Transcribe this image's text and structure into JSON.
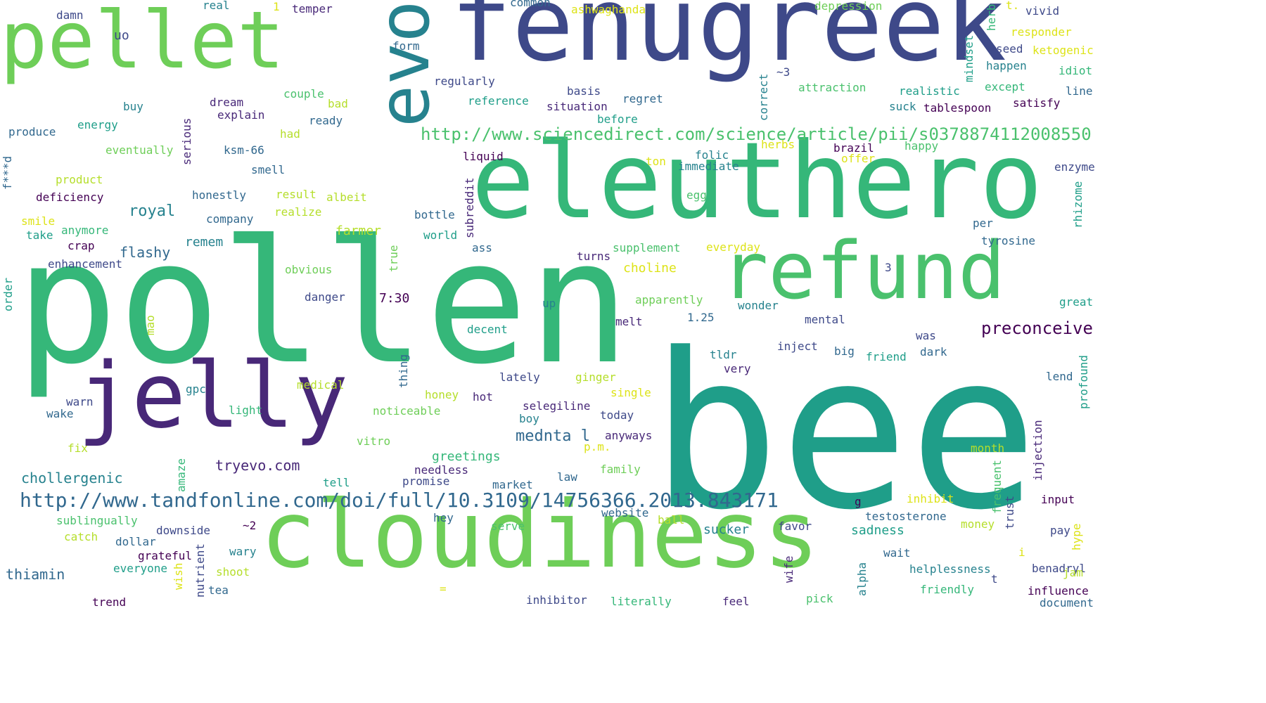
{
  "palette": {
    "background": "#ffffff",
    "colormap": "viridis",
    "c1": "#440154",
    "c2": "#482878",
    "c3": "#3e4989",
    "c4": "#31688e",
    "c5": "#26828e",
    "c6": "#1f9e89",
    "c7": "#35b779",
    "c8": "#6ece58",
    "c9": "#b5de2b",
    "c10": "#dde318"
  },
  "words": [
    {
      "text": "bee",
      "color": "#1f9e89",
      "orient": "h"
    },
    {
      "text": "pollen",
      "color": "#35b779",
      "orient": "h"
    },
    {
      "text": "fenugreek",
      "color": "#3e4989",
      "orient": "h"
    },
    {
      "text": "eleuthero",
      "color": "#35b779",
      "orient": "h"
    },
    {
      "text": "cloudiness",
      "color": "#6ece58",
      "orient": "h"
    },
    {
      "text": "pellet",
      "color": "#6ece58",
      "orient": "h"
    },
    {
      "text": "jelly",
      "color": "#482878",
      "orient": "h"
    },
    {
      "text": "refund",
      "color": "#4ac16d",
      "orient": "h"
    },
    {
      "text": "evo",
      "color": "#26828e",
      "orient": "v"
    },
    {
      "text": "http://www.sciencedirect.com/science/article/pii/s0378874112008550",
      "color": "#4ac16d",
      "orient": "h"
    },
    {
      "text": "http://www.tandfonline.com/doi/full/10.3109/14756366.2013.843171",
      "color": "#31688e",
      "orient": "h"
    },
    {
      "text": "preconceive",
      "color": "#440154",
      "orient": "h"
    },
    {
      "text": "tryevo.com",
      "color": "#482878",
      "orient": "h"
    },
    {
      "text": "chollergenic",
      "color": "#26828e",
      "orient": "h"
    },
    {
      "text": "mednta l",
      "color": "#31688e",
      "orient": "h"
    },
    {
      "text": "royal",
      "color": "#26828e",
      "orient": "h"
    },
    {
      "text": "flashy",
      "color": "#31688e",
      "orient": "h"
    },
    {
      "text": "choline",
      "color": "#dde318",
      "orient": "h"
    },
    {
      "text": "farmer",
      "color": "#b5de2b",
      "orient": "h"
    },
    {
      "text": "remem",
      "color": "#26828e",
      "orient": "h"
    },
    {
      "text": "thiamin",
      "color": "#31688e",
      "orient": "h"
    },
    {
      "text": "sadness",
      "color": "#1f9e89",
      "orient": "h"
    },
    {
      "text": "sucker",
      "color": "#26828e",
      "orient": "h"
    },
    {
      "text": "greetings",
      "color": "#35b779",
      "orient": "h"
    },
    {
      "text": "damn",
      "color": "#3e4989",
      "orient": "h"
    },
    {
      "text": "real",
      "color": "#26828e",
      "orient": "h"
    },
    {
      "text": "1",
      "color": "#dde318",
      "orient": "h"
    },
    {
      "text": "temper",
      "color": "#482878",
      "orient": "h"
    },
    {
      "text": "common",
      "color": "#31688e",
      "orient": "h"
    },
    {
      "text": "ashwaghanda",
      "color": "#dde318",
      "orient": "h"
    },
    {
      "text": "depression",
      "color": "#6ece58",
      "orient": "h"
    },
    {
      "text": "herb",
      "color": "#35b779",
      "orient": "v"
    },
    {
      "text": "t.",
      "color": "#dde318",
      "orient": "h"
    },
    {
      "text": "vivid",
      "color": "#3e4989",
      "orient": "h"
    },
    {
      "text": "uo",
      "color": "#3e4989",
      "orient": "h"
    },
    {
      "text": "form",
      "color": "#31688e",
      "orient": "h"
    },
    {
      "text": "responder",
      "color": "#dde318",
      "orient": "h"
    },
    {
      "text": "seed",
      "color": "#3e4989",
      "orient": "h"
    },
    {
      "text": "ketogenic",
      "color": "#dde318",
      "orient": "h"
    },
    {
      "text": "mindset",
      "color": "#1f9e89",
      "orient": "v"
    },
    {
      "text": "~3",
      "color": "#3e4989",
      "orient": "h"
    },
    {
      "text": "happen",
      "color": "#26828e",
      "orient": "h"
    },
    {
      "text": "idiot",
      "color": "#35b779",
      "orient": "h"
    },
    {
      "text": "regularly",
      "color": "#3e4989",
      "orient": "h"
    },
    {
      "text": "correct",
      "color": "#26828e",
      "orient": "v"
    },
    {
      "text": "attraction",
      "color": "#4ac16d",
      "orient": "h"
    },
    {
      "text": "except",
      "color": "#35b779",
      "orient": "h"
    },
    {
      "text": "line",
      "color": "#31688e",
      "orient": "h"
    },
    {
      "text": "basis",
      "color": "#3e4989",
      "orient": "h"
    },
    {
      "text": "realistic",
      "color": "#1f9e89",
      "orient": "h"
    },
    {
      "text": "couple",
      "color": "#4ac16d",
      "orient": "h"
    },
    {
      "text": "reference",
      "color": "#1f9e89",
      "orient": "h"
    },
    {
      "text": "regret",
      "color": "#31688e",
      "orient": "h"
    },
    {
      "text": "satisfy",
      "color": "#440154",
      "orient": "h"
    },
    {
      "text": "dream",
      "color": "#482878",
      "orient": "h"
    },
    {
      "text": "bad",
      "color": "#b5de2b",
      "orient": "h"
    },
    {
      "text": "situation",
      "color": "#482878",
      "orient": "h"
    },
    {
      "text": "suck",
      "color": "#26828e",
      "orient": "h"
    },
    {
      "text": "tablespoon",
      "color": "#440154",
      "orient": "h"
    },
    {
      "text": "buy",
      "color": "#26828e",
      "orient": "h"
    },
    {
      "text": "explain",
      "color": "#482878",
      "orient": "h"
    },
    {
      "text": "before",
      "color": "#1f9e89",
      "orient": "h"
    },
    {
      "text": "ready",
      "color": "#31688e",
      "orient": "h"
    },
    {
      "text": "energy",
      "color": "#1f9e89",
      "orient": "h"
    },
    {
      "text": "produce",
      "color": "#31688e",
      "orient": "h"
    },
    {
      "text": "had",
      "color": "#b5de2b",
      "orient": "h"
    },
    {
      "text": "serious",
      "color": "#482878",
      "orient": "v"
    },
    {
      "text": "eventually",
      "color": "#6ece58",
      "orient": "h"
    },
    {
      "text": "ksm-66",
      "color": "#31688e",
      "orient": "h"
    },
    {
      "text": "herbs",
      "color": "#dde318",
      "orient": "h"
    },
    {
      "text": "brazil",
      "color": "#440154",
      "orient": "h"
    },
    {
      "text": "happy",
      "color": "#4ac16d",
      "orient": "h"
    },
    {
      "text": "f***d",
      "color": "#31688e",
      "orient": "v"
    },
    {
      "text": "liquid",
      "color": "#440154",
      "orient": "h"
    },
    {
      "text": "folic",
      "color": "#26828e",
      "orient": "h"
    },
    {
      "text": "ton",
      "color": "#dde318",
      "orient": "h"
    },
    {
      "text": "immediate",
      "color": "#26828e",
      "orient": "h"
    },
    {
      "text": "offer",
      "color": "#dde318",
      "orient": "h"
    },
    {
      "text": "enzyme",
      "color": "#3e4989",
      "orient": "h"
    },
    {
      "text": "smell",
      "color": "#31688e",
      "orient": "h"
    },
    {
      "text": "product",
      "color": "#b5de2b",
      "orient": "h"
    },
    {
      "text": "deficiency",
      "color": "#440154",
      "orient": "h"
    },
    {
      "text": "honestly",
      "color": "#31688e",
      "orient": "h"
    },
    {
      "text": "result",
      "color": "#b5de2b",
      "orient": "h"
    },
    {
      "text": "albeit",
      "color": "#b5de2b",
      "orient": "h"
    },
    {
      "text": "egg",
      "color": "#4ac16d",
      "orient": "h"
    },
    {
      "text": "rhizome",
      "color": "#1f9e89",
      "orient": "v"
    },
    {
      "text": "realize",
      "color": "#b5de2b",
      "orient": "h"
    },
    {
      "text": "bottle",
      "color": "#31688e",
      "orient": "h"
    },
    {
      "text": "company",
      "color": "#31688e",
      "orient": "h"
    },
    {
      "text": "smile",
      "color": "#dde318",
      "orient": "h"
    },
    {
      "text": "per",
      "color": "#31688e",
      "orient": "h"
    },
    {
      "text": "subreddit",
      "color": "#482878",
      "orient": "v"
    },
    {
      "text": "take",
      "color": "#1f9e89",
      "orient": "h"
    },
    {
      "text": "anymore",
      "color": "#35b779",
      "orient": "h"
    },
    {
      "text": "world",
      "color": "#1f9e89",
      "orient": "h"
    },
    {
      "text": "tyrosine",
      "color": "#31688e",
      "orient": "h"
    },
    {
      "text": "crap",
      "color": "#440154",
      "orient": "h"
    },
    {
      "text": "ass",
      "color": "#31688e",
      "orient": "h"
    },
    {
      "text": "supplement",
      "color": "#4ac16d",
      "orient": "h"
    },
    {
      "text": "everyday",
      "color": "#dde318",
      "orient": "h"
    },
    {
      "text": "turns",
      "color": "#482878",
      "orient": "h"
    },
    {
      "text": "enhancement",
      "color": "#3e4989",
      "orient": "h"
    },
    {
      "text": "true",
      "color": "#6ece58",
      "orient": "v"
    },
    {
      "text": "3",
      "color": "#3e4989",
      "orient": "h"
    },
    {
      "text": "obvious",
      "color": "#6ece58",
      "orient": "h"
    },
    {
      "text": "order",
      "color": "#1f9e89",
      "orient": "v"
    },
    {
      "text": "danger",
      "color": "#3e4989",
      "orient": "h"
    },
    {
      "text": "7:30",
      "color": "#440154",
      "orient": "h"
    },
    {
      "text": "apparently",
      "color": "#6ece58",
      "orient": "h"
    },
    {
      "text": "up",
      "color": "#26828e",
      "orient": "h"
    },
    {
      "text": "wonder",
      "color": "#26828e",
      "orient": "h"
    },
    {
      "text": "great",
      "color": "#1f9e89",
      "orient": "h"
    },
    {
      "text": "mao",
      "color": "#b5de2b",
      "orient": "v"
    },
    {
      "text": "1.25",
      "color": "#31688e",
      "orient": "h"
    },
    {
      "text": "melt",
      "color": "#482878",
      "orient": "h"
    },
    {
      "text": "mental",
      "color": "#3e4989",
      "orient": "h"
    },
    {
      "text": "decent",
      "color": "#1f9e89",
      "orient": "h"
    },
    {
      "text": "was",
      "color": "#3e4989",
      "orient": "h"
    },
    {
      "text": "inject",
      "color": "#3e4989",
      "orient": "h"
    },
    {
      "text": "tldr",
      "color": "#26828e",
      "orient": "h"
    },
    {
      "text": "big",
      "color": "#31688e",
      "orient": "h"
    },
    {
      "text": "dark",
      "color": "#31688e",
      "orient": "h"
    },
    {
      "text": "friend",
      "color": "#1f9e89",
      "orient": "h"
    },
    {
      "text": "very",
      "color": "#482878",
      "orient": "h"
    },
    {
      "text": "thing",
      "color": "#31688e",
      "orient": "v"
    },
    {
      "text": "lend",
      "color": "#31688e",
      "orient": "h"
    },
    {
      "text": "profound",
      "color": "#1f9e89",
      "orient": "v"
    },
    {
      "text": "lately",
      "color": "#3e4989",
      "orient": "h"
    },
    {
      "text": "ginger",
      "color": "#b5de2b",
      "orient": "h"
    },
    {
      "text": "medical",
      "color": "#b5de2b",
      "orient": "h"
    },
    {
      "text": "gpc",
      "color": "#26828e",
      "orient": "h"
    },
    {
      "text": "single",
      "color": "#dde318",
      "orient": "h"
    },
    {
      "text": "honey",
      "color": "#b5de2b",
      "orient": "h"
    },
    {
      "text": "hot",
      "color": "#482878",
      "orient": "h"
    },
    {
      "text": "warn",
      "color": "#3e4989",
      "orient": "h"
    },
    {
      "text": "wake",
      "color": "#31688e",
      "orient": "h"
    },
    {
      "text": "light",
      "color": "#35b779",
      "orient": "h"
    },
    {
      "text": "noticeable",
      "color": "#6ece58",
      "orient": "h"
    },
    {
      "text": "selegiline",
      "color": "#482878",
      "orient": "h"
    },
    {
      "text": "today",
      "color": "#3e4989",
      "orient": "h"
    },
    {
      "text": "boy",
      "color": "#26828e",
      "orient": "h"
    },
    {
      "text": "injection",
      "color": "#482878",
      "orient": "v"
    },
    {
      "text": "anyways",
      "color": "#482878",
      "orient": "h"
    },
    {
      "text": "fix",
      "color": "#b5de2b",
      "orient": "h"
    },
    {
      "text": "vitro",
      "color": "#6ece58",
      "orient": "h"
    },
    {
      "text": "p.m.",
      "color": "#dde318",
      "orient": "h"
    },
    {
      "text": "month",
      "color": "#b5de2b",
      "orient": "h"
    },
    {
      "text": "amaze",
      "color": "#35b779",
      "orient": "v"
    },
    {
      "text": "needless",
      "color": "#482878",
      "orient": "h"
    },
    {
      "text": "family",
      "color": "#6ece58",
      "orient": "h"
    },
    {
      "text": "frequent",
      "color": "#4ac16d",
      "orient": "v"
    },
    {
      "text": "law",
      "color": "#31688e",
      "orient": "h"
    },
    {
      "text": "tell",
      "color": "#1f9e89",
      "orient": "h"
    },
    {
      "text": "promise",
      "color": "#3e4989",
      "orient": "h"
    },
    {
      "text": "market",
      "color": "#31688e",
      "orient": "h"
    },
    {
      "text": "g",
      "color": "#440154",
      "orient": "h"
    },
    {
      "text": "inhibit",
      "color": "#dde318",
      "orient": "h"
    },
    {
      "text": "input",
      "color": "#440154",
      "orient": "h"
    },
    {
      "text": "trust",
      "color": "#3e4989",
      "orient": "v"
    },
    {
      "text": "website",
      "color": "#31688e",
      "orient": "h"
    },
    {
      "text": "testosterone",
      "color": "#31688e",
      "orient": "h"
    },
    {
      "text": "sublingually",
      "color": "#4ac16d",
      "orient": "h"
    },
    {
      "text": "hey",
      "color": "#31688e",
      "orient": "h"
    },
    {
      "text": "ball",
      "color": "#b5de2b",
      "orient": "h"
    },
    {
      "text": "money",
      "color": "#b5de2b",
      "orient": "h"
    },
    {
      "text": "downside",
      "color": "#3e4989",
      "orient": "h"
    },
    {
      "text": "~2",
      "color": "#440154",
      "orient": "h"
    },
    {
      "text": "serve",
      "color": "#4ac16d",
      "orient": "h"
    },
    {
      "text": "favor",
      "color": "#3e4989",
      "orient": "h"
    },
    {
      "text": "pay",
      "color": "#3e4989",
      "orient": "h"
    },
    {
      "text": "hype",
      "color": "#dde318",
      "orient": "v"
    },
    {
      "text": "catch",
      "color": "#b5de2b",
      "orient": "h"
    },
    {
      "text": "dollar",
      "color": "#31688e",
      "orient": "h"
    },
    {
      "text": "wary",
      "color": "#26828e",
      "orient": "h"
    },
    {
      "text": "i",
      "color": "#dde318",
      "orient": "h"
    },
    {
      "text": "wait",
      "color": "#31688e",
      "orient": "h"
    },
    {
      "text": "grateful",
      "color": "#440154",
      "orient": "h"
    },
    {
      "text": "nutrient",
      "color": "#3e4989",
      "orient": "v"
    },
    {
      "text": "wish",
      "color": "#dde318",
      "orient": "v"
    },
    {
      "text": "shoot",
      "color": "#b5de2b",
      "orient": "h"
    },
    {
      "text": "wife",
      "color": "#482878",
      "orient": "v"
    },
    {
      "text": "helplessness",
      "color": "#26828e",
      "orient": "h"
    },
    {
      "text": "benadryl",
      "color": "#3e4989",
      "orient": "h"
    },
    {
      "text": "jam",
      "color": "#b5de2b",
      "orient": "h"
    },
    {
      "text": "everyone",
      "color": "#1f9e89",
      "orient": "h"
    },
    {
      "text": "alpha",
      "color": "#26828e",
      "orient": "v"
    },
    {
      "text": "t",
      "color": "#3e4989",
      "orient": "h"
    },
    {
      "text": "friendly",
      "color": "#35b779",
      "orient": "h"
    },
    {
      "text": "influence",
      "color": "#440154",
      "orient": "h"
    },
    {
      "text": "tea",
      "color": "#31688e",
      "orient": "h"
    },
    {
      "text": "=",
      "color": "#dde318",
      "orient": "h"
    },
    {
      "text": "inhibitor",
      "color": "#3e4989",
      "orient": "h"
    },
    {
      "text": "literally",
      "color": "#35b779",
      "orient": "h"
    },
    {
      "text": "feel",
      "color": "#482878",
      "orient": "h"
    },
    {
      "text": "pick",
      "color": "#4ac16d",
      "orient": "h"
    },
    {
      "text": "trend",
      "color": "#440154",
      "orient": "h"
    },
    {
      "text": "document",
      "color": "#31688e",
      "orient": "h"
    }
  ]
}
